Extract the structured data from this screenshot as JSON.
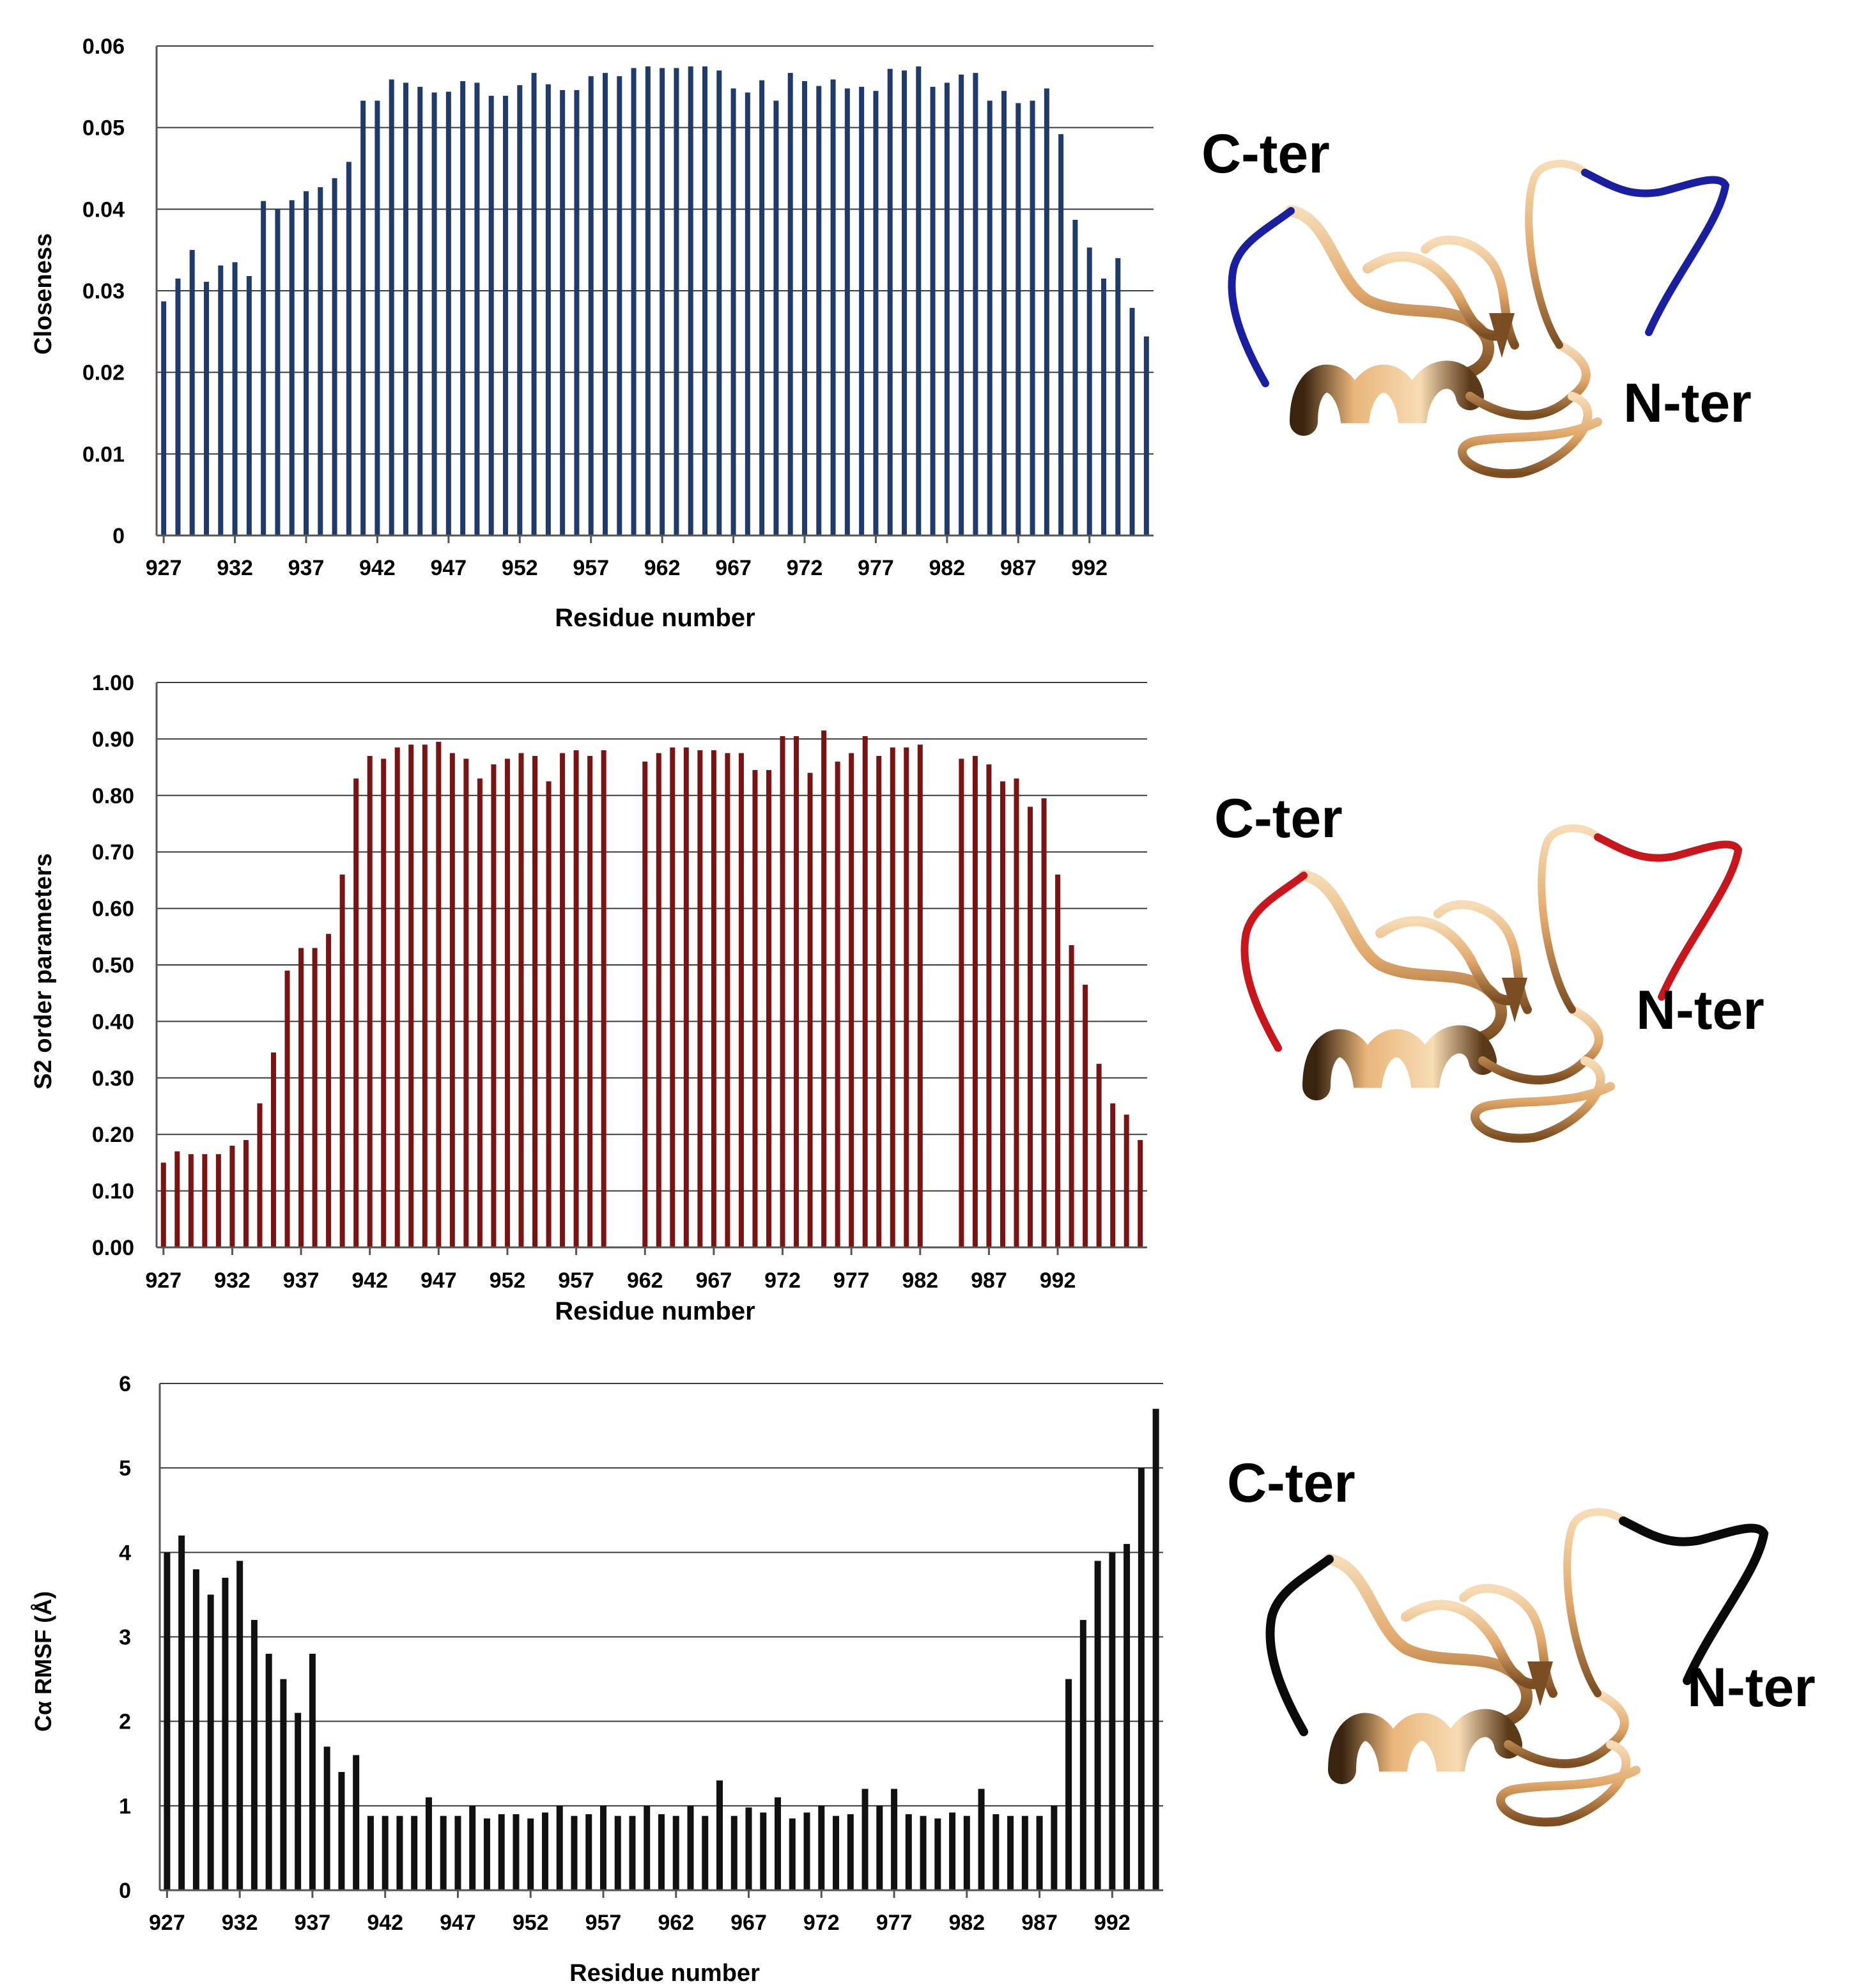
{
  "chart_data": [
    {
      "type": "bar",
      "title": "",
      "xlabel": "Residue number",
      "ylabel": "Closeness",
      "color": "#1f3a6b",
      "x_start": 927,
      "x_end": 994,
      "xticks": [
        "927",
        "932",
        "937",
        "942",
        "947",
        "952",
        "957",
        "962",
        "967",
        "972",
        "977",
        "982",
        "987",
        "992"
      ],
      "yticks": [
        "0",
        "0.01",
        "0.02",
        "0.03",
        "0.04",
        "0.05",
        "0.06"
      ],
      "ylim": [
        0,
        0.06
      ],
      "grid": true,
      "values": [
        0.0287,
        0.0315,
        0.035,
        0.0311,
        0.0331,
        0.0335,
        0.0318,
        0.041,
        0.04,
        0.0411,
        0.0422,
        0.0427,
        0.0438,
        0.0458,
        0.0533,
        0.0533,
        0.0559,
        0.0555,
        0.055,
        0.0543,
        0.0544,
        0.0557,
        0.0555,
        0.0539,
        0.0539,
        0.0552,
        0.0567,
        0.0553,
        0.0546,
        0.0546,
        0.0563,
        0.0567,
        0.0563,
        0.0573,
        0.0575,
        0.0573,
        0.0573,
        0.0575,
        0.0575,
        0.057,
        0.0548,
        0.0543,
        0.0558,
        0.0533,
        0.0567,
        0.0557,
        0.0551,
        0.0559,
        0.0548,
        0.055,
        0.0545,
        0.0572,
        0.057,
        0.0575,
        0.055,
        0.0555,
        0.0565,
        0.0567,
        0.0533,
        0.0545,
        0.053,
        0.0533,
        0.0548,
        0.0492,
        0.0387,
        0.0353,
        0.0315,
        0.034,
        0.0279,
        0.0244
      ]
    },
    {
      "type": "bar",
      "title": "",
      "xlabel": "Residue number",
      "ylabel": "S2 order parameters",
      "color": "#7a1414",
      "x_start": 927,
      "x_end": 994,
      "xticks": [
        "927",
        "932",
        "937",
        "942",
        "947",
        "952",
        "957",
        "962",
        "967",
        "972",
        "977",
        "982",
        "987",
        "992"
      ],
      "yticks": [
        "0.00",
        "0.10",
        "0.20",
        "0.30",
        "0.40",
        "0.50",
        "0.60",
        "0.70",
        "0.80",
        "0.90",
        "1.00"
      ],
      "ylim": [
        0,
        1.0
      ],
      "grid": true,
      "values": [
        0.15,
        0.17,
        0.165,
        0.165,
        0.165,
        0.18,
        0.19,
        0.255,
        0.345,
        0.49,
        0.53,
        0.53,
        0.555,
        0.66,
        0.83,
        0.87,
        0.865,
        0.885,
        0.89,
        0.89,
        0.895,
        0.875,
        0.865,
        0.83,
        0.855,
        0.865,
        0.875,
        0.87,
        0.825,
        0.875,
        0.88,
        0.87,
        0.88,
        null,
        null,
        0.86,
        0.875,
        0.885,
        0.885,
        0.88,
        0.88,
        0.875,
        0.875,
        0.845,
        0.845,
        0.905,
        0.905,
        0.84,
        0.915,
        0.86,
        0.875,
        0.905,
        0.87,
        0.885,
        0.885,
        0.89,
        null,
        null,
        0.865,
        0.87,
        0.855,
        0.825,
        0.83,
        0.78,
        0.795,
        0.66,
        0.535,
        0.465,
        0.325,
        0.255,
        0.235,
        0.19
      ]
    },
    {
      "type": "bar",
      "title": "",
      "xlabel": "Residue number",
      "ylabel": "Cα RMSF (Å)",
      "color": "#111111",
      "x_start": 927,
      "x_end": 994,
      "xticks": [
        "927",
        "932",
        "937",
        "942",
        "947",
        "952",
        "957",
        "962",
        "967",
        "972",
        "977",
        "982",
        "987",
        "992"
      ],
      "yticks": [
        "0",
        "1",
        "2",
        "3",
        "4",
        "5",
        "6"
      ],
      "ylim": [
        0,
        6
      ],
      "grid": true,
      "values": [
        4.0,
        4.2,
        3.8,
        3.5,
        3.7,
        3.9,
        3.2,
        2.8,
        2.5,
        2.1,
        2.8,
        1.7,
        1.4,
        1.6,
        0.88,
        0.88,
        0.88,
        0.88,
        1.1,
        0.88,
        0.88,
        1.0,
        0.85,
        0.9,
        0.9,
        0.85,
        0.92,
        1.0,
        0.88,
        0.9,
        1.0,
        0.88,
        0.88,
        1.0,
        0.9,
        0.88,
        1.0,
        0.88,
        1.3,
        0.88,
        0.98,
        0.92,
        1.1,
        0.85,
        0.92,
        1.0,
        0.88,
        0.9,
        1.2,
        1.0,
        1.2,
        0.9,
        0.88,
        0.85,
        0.92,
        0.88,
        1.2,
        0.9,
        0.88,
        0.88,
        0.88,
        1.0,
        2.5,
        3.2,
        3.9,
        4.0,
        4.1,
        5.0,
        5.7
      ]
    }
  ],
  "structures": [
    {
      "c_label": "C-ter",
      "n_label": "N-ter",
      "termini_color": "#1a1fa0"
    },
    {
      "c_label": "C-ter",
      "n_label": "N-ter",
      "termini_color": "#c8161d"
    },
    {
      "c_label": "C-ter",
      "n_label": "N-ter",
      "termini_color": "#0a0a0a"
    }
  ],
  "ribbon_color": "#e8b77e"
}
